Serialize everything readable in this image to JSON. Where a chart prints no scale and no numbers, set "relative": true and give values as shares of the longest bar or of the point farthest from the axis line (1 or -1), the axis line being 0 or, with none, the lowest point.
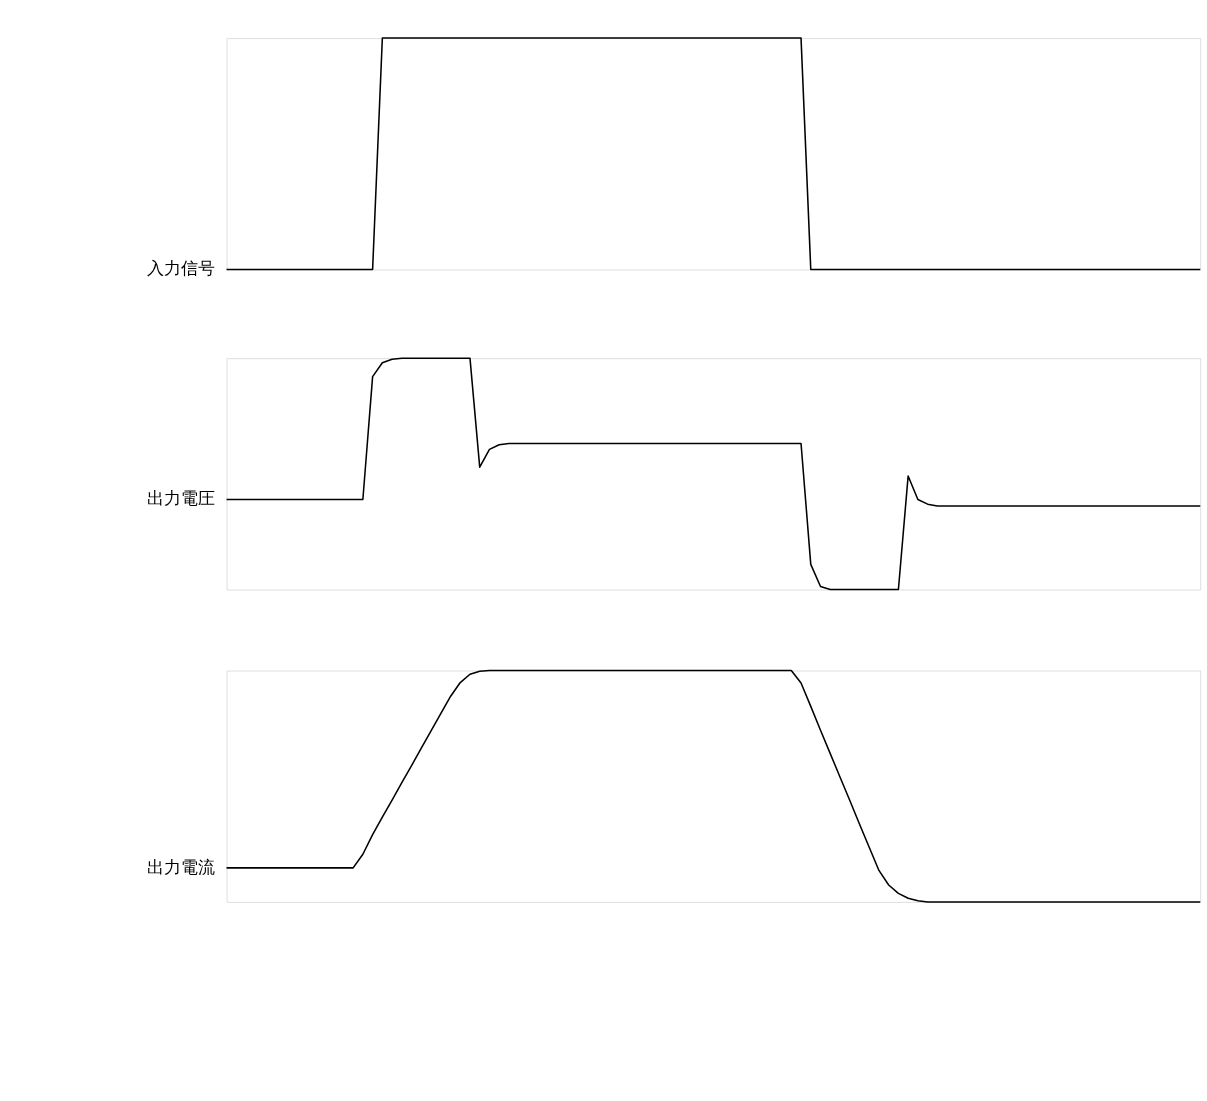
{
  "chart_data": [
    {
      "type": "line",
      "relative": true,
      "categories": [
        null,
        null,
        null,
        null,
        null,
        null,
        null,
        null,
        null,
        null,
        null,
        null,
        null,
        null,
        null,
        null,
        null,
        null,
        null,
        null,
        null,
        null,
        null,
        null,
        null,
        null,
        null,
        null,
        null,
        null,
        null,
        null,
        null,
        null,
        null,
        null,
        null,
        null,
        null,
        null,
        null,
        null,
        null,
        null,
        null,
        null,
        null,
        null,
        null,
        null,
        null,
        null,
        null,
        null,
        null,
        null,
        null,
        null,
        null,
        null,
        null,
        null,
        null,
        null,
        null,
        null,
        null,
        null,
        null,
        null,
        null,
        null,
        null,
        null,
        null,
        null,
        null,
        null,
        null,
        null,
        null,
        null,
        null,
        null,
        null,
        null,
        null,
        null,
        null,
        null,
        null,
        null,
        null,
        null,
        null,
        null,
        null,
        null,
        null,
        null,
        null
      ],
      "series": [
        {
          "name": "入力信号",
          "color": "#000000",
          "values": [
            0,
            0,
            0,
            0,
            0,
            0,
            0,
            0,
            0,
            0,
            0,
            0,
            0,
            0,
            0,
            0,
            1,
            1,
            1,
            1,
            1,
            1,
            1,
            1,
            1,
            1,
            1,
            1,
            1,
            1,
            1,
            1,
            1,
            1,
            1,
            1,
            1,
            1,
            1,
            1,
            1,
            1,
            1,
            1,
            1,
            1,
            1,
            1,
            1,
            1,
            1,
            1,
            1,
            1,
            1,
            1,
            1,
            1,
            1,
            1,
            0,
            0,
            0,
            0,
            0,
            0,
            0,
            0,
            0,
            0,
            0,
            0,
            0,
            0,
            0,
            0,
            0,
            0,
            0,
            0,
            0,
            0,
            0,
            0,
            0,
            0,
            0,
            0,
            0,
            0,
            0,
            0,
            0,
            0,
            0,
            0,
            0,
            0,
            0,
            0,
            0
          ]
        }
      ]
    },
    {
      "type": "line",
      "relative": true,
      "categories": [
        null,
        null,
        null,
        null,
        null,
        null,
        null,
        null,
        null,
        null,
        null,
        null,
        null,
        null,
        null,
        null,
        null,
        null,
        null,
        null,
        null,
        null,
        null,
        null,
        null,
        null,
        null,
        null,
        null,
        null,
        null,
        null,
        null,
        null,
        null,
        null,
        null,
        null,
        null,
        null,
        null,
        null,
        null,
        null,
        null,
        null,
        null,
        null,
        null,
        null,
        null,
        null,
        null,
        null,
        null,
        null,
        null,
        null,
        null,
        null,
        null,
        null,
        null,
        null,
        null,
        null,
        null,
        null,
        null,
        null,
        null,
        null,
        null,
        null,
        null,
        null,
        null,
        null,
        null,
        null,
        null,
        null,
        null,
        null,
        null,
        null,
        null,
        null,
        null,
        null,
        null,
        null,
        null,
        null,
        null,
        null,
        null,
        null,
        null,
        null,
        null
      ],
      "series": [
        {
          "name": "出力電圧",
          "color": "#000000",
          "values": [
            0.389,
            0.389,
            0.389,
            0.389,
            0.389,
            0.389,
            0.389,
            0.389,
            0.389,
            0.389,
            0.389,
            0.389,
            0.389,
            0.389,
            0.389,
            0.92,
            0.98,
            0.995,
            1,
            1,
            1,
            1,
            1,
            1,
            1,
            1,
            0.529,
            0.606,
            0.626,
            0.631,
            0.631,
            0.631,
            0.631,
            0.631,
            0.631,
            0.631,
            0.631,
            0.631,
            0.631,
            0.631,
            0.631,
            0.631,
            0.631,
            0.631,
            0.631,
            0.631,
            0.631,
            0.631,
            0.631,
            0.631,
            0.631,
            0.631,
            0.631,
            0.631,
            0.631,
            0.631,
            0.631,
            0.631,
            0.631,
            0.631,
            0.109,
            0.013,
            0,
            0,
            0,
            0,
            0,
            0,
            0,
            0,
            0.491,
            0.389,
            0.369,
            0.361,
            0.361,
            0.361,
            0.361,
            0.361,
            0.361,
            0.361,
            0.361,
            0.361,
            0.361,
            0.361,
            0.361,
            0.361,
            0.361,
            0.361,
            0.361,
            0.361,
            0.361,
            0.361,
            0.361,
            0.361,
            0.361,
            0.361,
            0.361,
            0.361,
            0.361,
            0.361,
            0.361
          ]
        }
      ]
    },
    {
      "type": "line",
      "relative": true,
      "categories": [
        null,
        null,
        null,
        null,
        null,
        null,
        null,
        null,
        null,
        null,
        null,
        null,
        null,
        null,
        null,
        null,
        null,
        null,
        null,
        null,
        null,
        null,
        null,
        null,
        null,
        null,
        null,
        null,
        null,
        null,
        null,
        null,
        null,
        null,
        null,
        null,
        null,
        null,
        null,
        null,
        null,
        null,
        null,
        null,
        null,
        null,
        null,
        null,
        null,
        null,
        null,
        null,
        null,
        null,
        null,
        null,
        null,
        null,
        null,
        null,
        null,
        null,
        null,
        null,
        null,
        null,
        null,
        null,
        null,
        null,
        null,
        null,
        null,
        null,
        null,
        null,
        null,
        null,
        null,
        null,
        null,
        null,
        null,
        null,
        null,
        null,
        null,
        null,
        null,
        null,
        null,
        null,
        null,
        null,
        null,
        null,
        null,
        null,
        null,
        null,
        null
      ],
      "series": [
        {
          "name": "出力電流",
          "color": "#000000",
          "values": [
            0.147,
            0.147,
            0.147,
            0.147,
            0.147,
            0.147,
            0.147,
            0.147,
            0.147,
            0.147,
            0.147,
            0.147,
            0.147,
            0.147,
            0.206,
            0.291,
            0.366,
            0.44,
            0.515,
            0.589,
            0.665,
            0.739,
            0.814,
            0.888,
            0.948,
            0.984,
            0.997,
            1,
            1,
            1,
            1,
            1,
            1,
            1,
            1,
            1,
            1,
            1,
            1,
            1,
            1,
            1,
            1,
            1,
            1,
            1,
            1,
            1,
            1,
            1,
            1,
            1,
            1,
            1,
            1,
            1,
            1,
            1,
            1,
            0.946,
            0.845,
            0.742,
            0.641,
            0.54,
            0.439,
            0.337,
            0.236,
            0.136,
            0.073,
            0.037,
            0.016,
            0.005,
            0,
            0,
            0,
            0,
            0,
            0,
            0,
            0,
            0,
            0,
            0,
            0,
            0,
            0,
            0,
            0,
            0,
            0,
            0,
            0,
            0,
            0,
            0,
            0,
            0,
            0,
            0,
            0,
            0
          ]
        }
      ]
    }
  ]
}
